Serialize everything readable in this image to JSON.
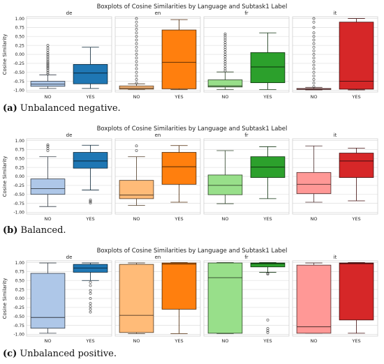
{
  "chart_data": [
    {
      "type": "box",
      "title": "Boxplots of Cosine Similarities by Language and Subtask1 Label",
      "ylabel": "Cosine Similarity",
      "ylim": [
        -1.05,
        1.05
      ],
      "yticks": [
        "1.00",
        "0.75",
        "0.50",
        "0.25",
        "0.00",
        "-0.25",
        "-0.50",
        "-0.75",
        "-1.00"
      ],
      "caption_letter": "(a)",
      "caption_text": " Unbalanced negative.",
      "panels": [
        {
          "name": "de",
          "boxes": [
            {
              "label": "NO",
              "color": "#aec7e8",
              "whislo": -0.95,
              "q1": -0.89,
              "med": -0.83,
              "q3": -0.75,
              "whishi": -0.57,
              "fliers": [
                -0.55,
                -0.5,
                -0.45,
                -0.4,
                -0.36,
                -0.32,
                -0.28,
                -0.24,
                -0.2,
                -0.15,
                -0.1,
                -0.05,
                0.0,
                0.05,
                0.12,
                0.18,
                0.25
              ]
            },
            {
              "label": "YES",
              "color": "#1f77b4",
              "whislo": -0.95,
              "q1": -0.82,
              "med": -0.52,
              "q3": -0.28,
              "whishi": 0.2,
              "fliers": []
            }
          ]
        },
        {
          "name": "en",
          "boxes": [
            {
              "label": "NO",
              "color": "#ffbb78",
              "whislo": -0.98,
              "q1": -0.97,
              "med": -0.94,
              "q3": -0.88,
              "whishi": -0.82,
              "fliers": [
                -0.8,
                -0.7,
                -0.6,
                -0.5,
                -0.4,
                -0.3,
                -0.2,
                -0.1,
                0.0,
                0.1,
                0.2,
                0.3,
                0.4,
                0.5,
                0.6,
                0.7,
                0.8,
                0.9,
                1.0
              ]
            },
            {
              "label": "YES",
              "color": "#ff7f0e",
              "whislo": -0.98,
              "q1": -0.96,
              "med": -0.22,
              "q3": 0.68,
              "whishi": 0.97,
              "fliers": []
            }
          ]
        },
        {
          "name": "fr",
          "boxes": [
            {
              "label": "NO",
              "color": "#98df8a",
              "whislo": -0.98,
              "q1": -0.91,
              "med": -0.88,
              "q3": -0.71,
              "whishi": -0.49,
              "fliers": [
                -0.46,
                -0.4,
                -0.33,
                -0.26,
                -0.2,
                -0.13,
                -0.06,
                0.0,
                0.07,
                0.14,
                0.2,
                0.27,
                0.33,
                0.4,
                0.46,
                0.52,
                0.57
              ]
            },
            {
              "label": "YES",
              "color": "#2ca02c",
              "whislo": -0.98,
              "q1": -0.79,
              "med": -0.35,
              "q3": 0.05,
              "whishi": 0.6,
              "fliers": []
            }
          ]
        },
        {
          "name": "it",
          "boxes": [
            {
              "label": "NO",
              "color": "#ff9896",
              "whislo": -0.99,
              "q1": -0.98,
              "med": -0.97,
              "q3": -0.95,
              "whishi": -0.92,
              "fliers": [
                -0.9,
                -0.8,
                -0.7,
                -0.6,
                -0.5,
                -0.4,
                -0.3,
                -0.2,
                -0.1,
                0.0,
                0.1,
                0.2,
                0.3,
                0.4,
                0.5,
                0.6,
                0.75,
                0.9,
                1.0
              ]
            },
            {
              "label": "YES",
              "color": "#d62728",
              "whislo": -0.99,
              "q1": -0.97,
              "med": -0.75,
              "q3": 0.9,
              "whishi": 1.0,
              "fliers": []
            }
          ]
        }
      ]
    },
    {
      "type": "box",
      "title": "Boxplots of Cosine Similarities by Language and Subtask1 Label",
      "ylabel": "Cosine Similarity",
      "ylim": [
        -1.05,
        1.05
      ],
      "yticks": [
        "1.00",
        "0.75",
        "0.50",
        "0.25",
        "0.00",
        "-0.25",
        "-0.50",
        "-0.75",
        "-1.00"
      ],
      "caption_letter": "(b)",
      "caption_text": " Balanced.",
      "panels": [
        {
          "name": "de",
          "boxes": [
            {
              "label": "NO",
              "color": "#aec7e8",
              "whislo": -0.84,
              "q1": -0.5,
              "med": -0.34,
              "q3": -0.07,
              "whishi": 0.55,
              "fliers": [
                0.72,
                0.78,
                0.84,
                0.88
              ]
            },
            {
              "label": "YES",
              "color": "#1f77b4",
              "whislo": -0.38,
              "q1": 0.23,
              "med": 0.43,
              "q3": 0.67,
              "whishi": 0.87,
              "fliers": [
                -0.66,
                -0.7,
                -0.74
              ]
            }
          ]
        },
        {
          "name": "en",
          "boxes": [
            {
              "label": "NO",
              "color": "#ffbb78",
              "whislo": -0.81,
              "q1": -0.62,
              "med": -0.52,
              "q3": -0.11,
              "whishi": 0.55,
              "fliers": [
                0.72,
                0.85
              ]
            },
            {
              "label": "YES",
              "color": "#ff7f0e",
              "whislo": -0.72,
              "q1": -0.22,
              "med": 0.27,
              "q3": 0.67,
              "whishi": 0.86,
              "fliers": []
            }
          ]
        },
        {
          "name": "fr",
          "boxes": [
            {
              "label": "NO",
              "color": "#98df8a",
              "whislo": -0.76,
              "q1": -0.51,
              "med": -0.25,
              "q3": 0.04,
              "whishi": 0.72,
              "fliers": []
            },
            {
              "label": "YES",
              "color": "#2ca02c",
              "whislo": -0.62,
              "q1": -0.03,
              "med": 0.26,
              "q3": 0.55,
              "whishi": 0.83,
              "fliers": []
            }
          ]
        },
        {
          "name": "it",
          "boxes": [
            {
              "label": "NO",
              "color": "#ff9896",
              "whislo": -0.72,
              "q1": -0.48,
              "med": -0.22,
              "q3": 0.11,
              "whishi": 0.85,
              "fliers": []
            },
            {
              "label": "YES",
              "color": "#d62728",
              "whislo": -0.68,
              "q1": -0.03,
              "med": 0.43,
              "q3": 0.65,
              "whishi": 0.79,
              "fliers": []
            }
          ]
        }
      ]
    },
    {
      "type": "box",
      "title": "Boxplots of Cosine Similarities by Language and Subtask1 Label",
      "ylabel": "Cosine Similarity",
      "ylim": [
        -1.05,
        1.05
      ],
      "yticks": [
        "1.00",
        "0.75",
        "0.50",
        "0.25",
        "0.00",
        "-0.25",
        "-0.50",
        "-0.75",
        "-1.00"
      ],
      "caption_letter": "(c)",
      "caption_text": " Unbalanced positive.",
      "panels": [
        {
          "name": "de",
          "boxes": [
            {
              "label": "NO",
              "color": "#aec7e8",
              "whislo": -0.97,
              "q1": -0.83,
              "med": -0.53,
              "q3": 0.7,
              "whishi": 0.99,
              "fliers": []
            },
            {
              "label": "YES",
              "color": "#1f77b4",
              "whislo": 0.5,
              "q1": 0.73,
              "med": 0.85,
              "q3": 0.95,
              "whishi": 0.99,
              "fliers": [
                0.45,
                0.36,
                0.22,
                0.14,
                0.0,
                -0.14,
                -0.22,
                -0.3,
                -0.38
              ]
            }
          ]
        },
        {
          "name": "en",
          "boxes": [
            {
              "label": "NO",
              "color": "#ffbb78",
              "whislo": -0.98,
              "q1": -0.95,
              "med": -0.47,
              "q3": 0.95,
              "whishi": 0.99,
              "fliers": []
            },
            {
              "label": "YES",
              "color": "#ff7f0e",
              "whislo": -0.98,
              "q1": -0.3,
              "med": 0.96,
              "q3": 0.99,
              "whishi": 1.0,
              "fliers": []
            }
          ]
        },
        {
          "name": "fr",
          "boxes": [
            {
              "label": "NO",
              "color": "#98df8a",
              "whislo": -0.98,
              "q1": -0.97,
              "med": 0.58,
              "q3": 0.99,
              "whishi": 1.0,
              "fliers": []
            },
            {
              "label": "YES",
              "color": "#2ca02c",
              "whislo": 0.73,
              "q1": 0.88,
              "med": 0.97,
              "q3": 0.99,
              "whishi": 1.0,
              "fliers": [
                0.7,
                0.68,
                -0.6,
                -0.84,
                -0.9,
                -0.95
              ]
            }
          ]
        },
        {
          "name": "it",
          "boxes": [
            {
              "label": "NO",
              "color": "#ff9896",
              "whislo": -0.97,
              "q1": -0.97,
              "med": -0.79,
              "q3": 0.93,
              "whishi": 0.99,
              "fliers": []
            },
            {
              "label": "YES",
              "color": "#d62728",
              "whislo": -0.97,
              "q1": -0.6,
              "med": 0.97,
              "q3": 0.99,
              "whishi": 1.0,
              "fliers": []
            }
          ]
        }
      ]
    }
  ]
}
